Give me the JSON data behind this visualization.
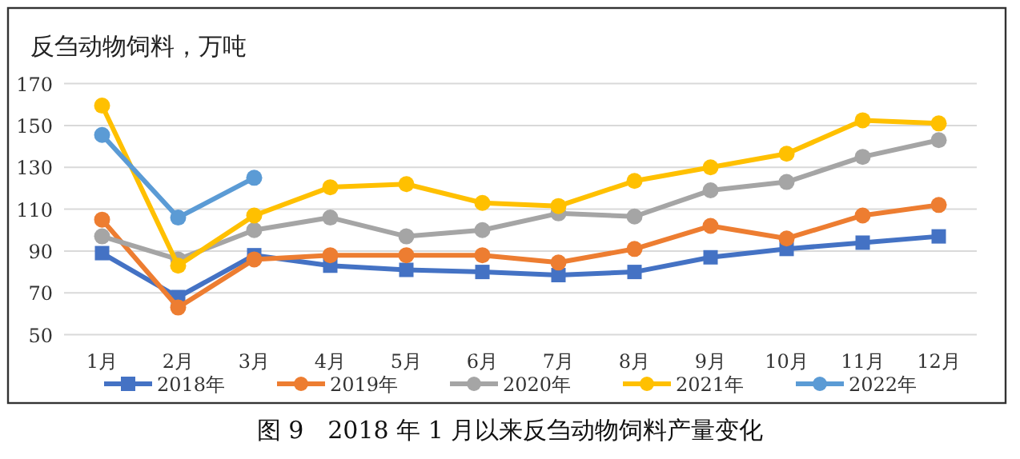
{
  "chart_data": {
    "type": "line",
    "title": "反刍动物饲料，万吨",
    "annotations": [
      "图 9　2018 年 1 月以来反刍动物饲料产量变化"
    ],
    "categories": [
      "1月",
      "2月",
      "3月",
      "4月",
      "5月",
      "6月",
      "7月",
      "8月",
      "9月",
      "10月",
      "11月",
      "12月"
    ],
    "ylim": [
      50,
      170
    ],
    "yticks": [
      50,
      70,
      90,
      110,
      130,
      150,
      170
    ],
    "grid": "y",
    "legend": "bottom",
    "marker": "circle",
    "series": [
      {
        "name": "2018年",
        "color": "#4472c4",
        "marker": "square",
        "values": [
          89,
          68,
          88,
          83,
          81,
          80,
          78.5,
          80,
          87,
          91,
          94,
          97
        ]
      },
      {
        "name": "2019年",
        "color": "#ed7d31",
        "values": [
          105,
          63,
          86,
          88,
          88,
          88,
          84.5,
          91,
          102,
          96,
          107,
          112
        ]
      },
      {
        "name": "2020年",
        "color": "#a5a5a5",
        "values": [
          97,
          86,
          100,
          106,
          97,
          100,
          108,
          106.5,
          119,
          123,
          135,
          143
        ]
      },
      {
        "name": "2021年",
        "color": "#ffc000",
        "values": [
          159.5,
          83,
          107,
          120.5,
          122,
          113,
          111.5,
          123.5,
          130,
          136.5,
          152.5,
          151
        ]
      },
      {
        "name": "2022年",
        "color": "#5b9bd5",
        "values": [
          145.5,
          106,
          125,
          null,
          null,
          null,
          null,
          null,
          null,
          null,
          null,
          null
        ]
      }
    ]
  }
}
